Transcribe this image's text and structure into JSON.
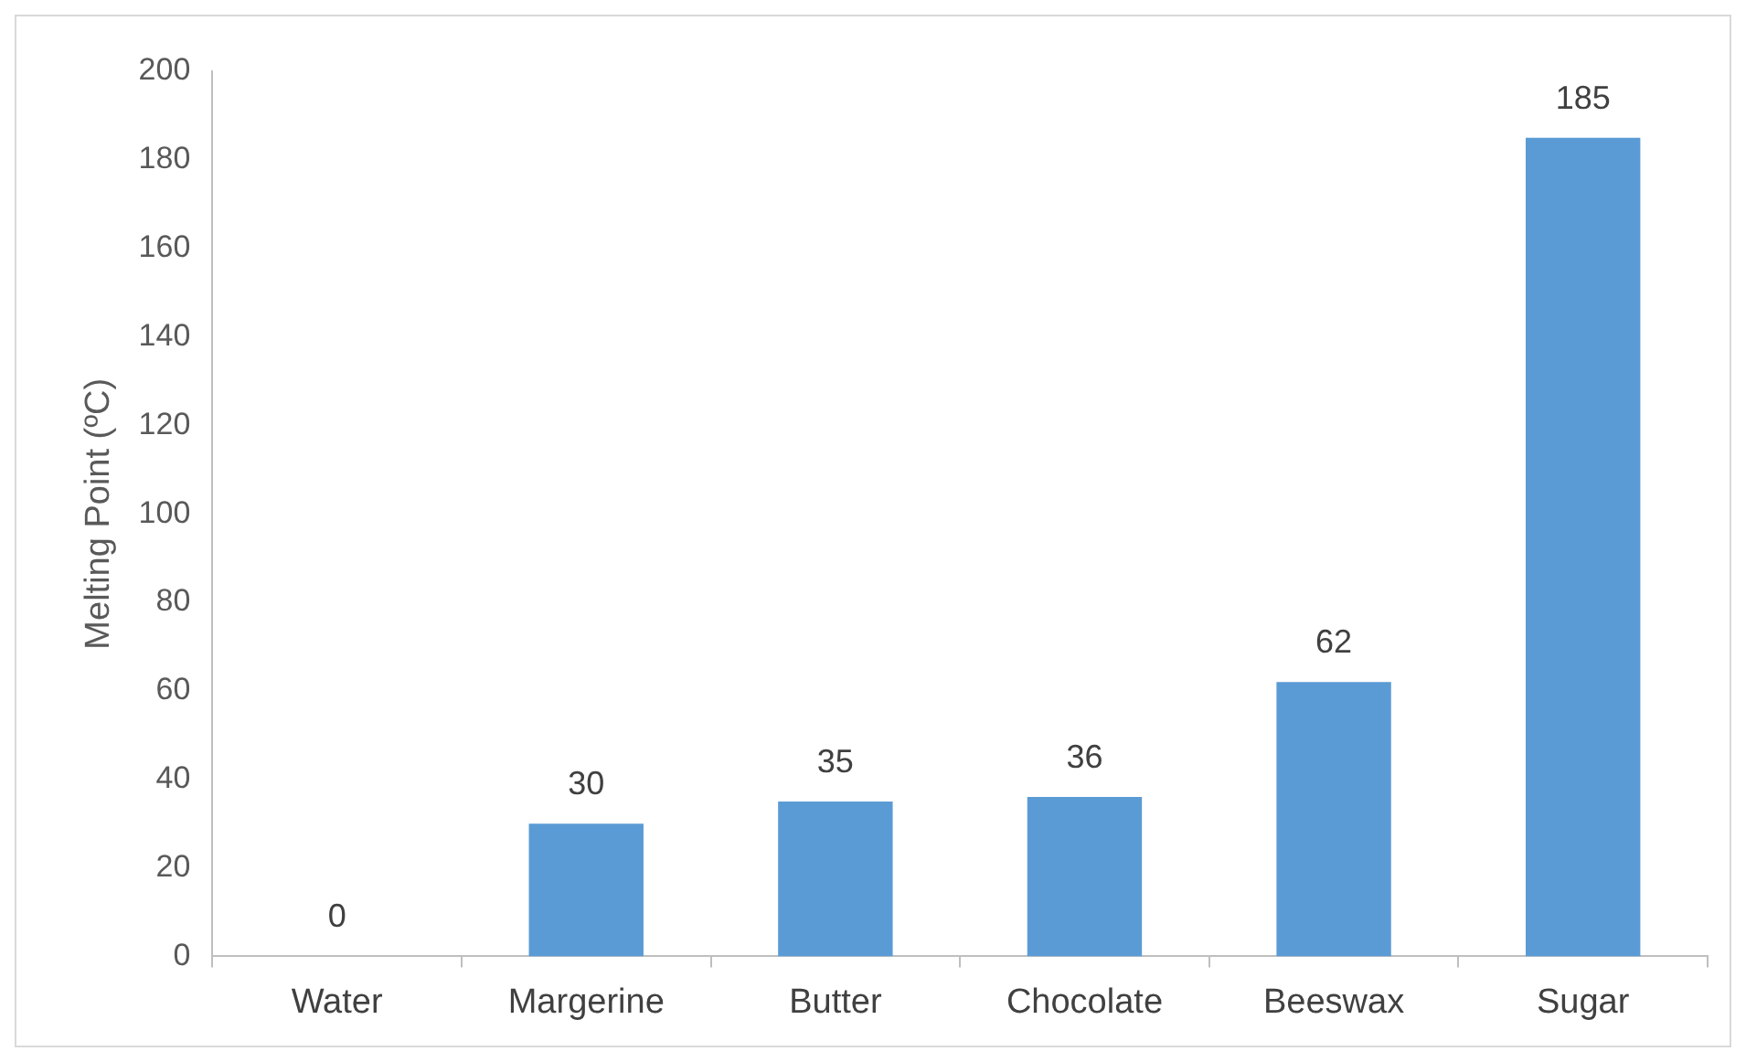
{
  "chart_data": {
    "type": "bar",
    "ylabel": "Melting Point (ºC)",
    "categories": [
      "Water",
      "Margerine",
      "Butter",
      "Chocolate",
      "Beeswax",
      "Sugar"
    ],
    "values": [
      0,
      30,
      35,
      36,
      62,
      185
    ],
    "color": "#5b9bd5",
    "ylim": [
      0,
      200
    ],
    "yticks": [
      0,
      20,
      40,
      60,
      80,
      100,
      120,
      140,
      160,
      180,
      200
    ],
    "grid": false,
    "legend": false,
    "data_labels": true
  }
}
